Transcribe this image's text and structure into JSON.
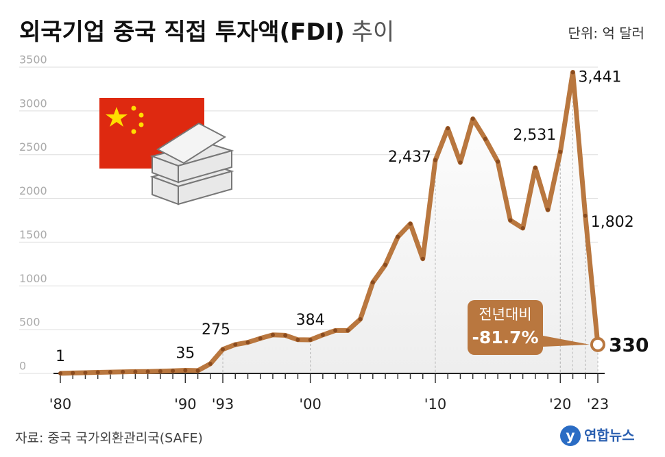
{
  "chart_data": {
    "type": "line",
    "title": "외국기업 중국 직접 투자액(FDI)",
    "title_suffix": "추이",
    "unit": "단위: 억 달러",
    "source": "자료: 중국 국가외환관리국(SAFE)",
    "logo": "연합뉴스",
    "annotation": [
      "전년대비",
      "-81.7%"
    ],
    "color": "#b9773f",
    "marker_color": "#8a4b1e",
    "x": [
      1980,
      1981,
      1982,
      1983,
      1984,
      1985,
      1986,
      1987,
      1988,
      1989,
      1990,
      1991,
      1992,
      1993,
      1994,
      1995,
      1996,
      1997,
      1998,
      1999,
      2000,
      2001,
      2002,
      2003,
      2004,
      2005,
      2006,
      2007,
      2008,
      2009,
      2010,
      2011,
      2012,
      2013,
      2014,
      2015,
      2016,
      2017,
      2018,
      2019,
      2020,
      2021,
      2022,
      2023
    ],
    "values": [
      1,
      5,
      8,
      12,
      15,
      18,
      20,
      22,
      25,
      30,
      35,
      32,
      110,
      275,
      330,
      355,
      400,
      440,
      435,
      385,
      384,
      440,
      490,
      490,
      620,
      1040,
      1240,
      1560,
      1710,
      1310,
      2437,
      2800,
      2410,
      2910,
      2680,
      2420,
      1750,
      1660,
      2350,
      1870,
      2531,
      3441,
      1802,
      330
    ],
    "value_labels": [
      "1",
      null,
      null,
      null,
      null,
      null,
      null,
      null,
      null,
      null,
      "35",
      null,
      null,
      "275",
      null,
      null,
      null,
      null,
      null,
      null,
      "384",
      null,
      null,
      null,
      null,
      null,
      null,
      null,
      null,
      null,
      "2,437",
      null,
      null,
      null,
      null,
      null,
      null,
      null,
      null,
      null,
      "2,531",
      "3,441",
      "1,802",
      "330"
    ],
    "xlim": [
      1980,
      2023
    ],
    "xticks": [
      {
        "value": 1980,
        "label": "'80"
      },
      {
        "value": 1990,
        "label": "'90"
      },
      {
        "value": 1993,
        "label": "'93"
      },
      {
        "value": 2000,
        "label": "'00"
      },
      {
        "value": 2010,
        "label": "'10"
      },
      {
        "value": 2020,
        "label": "'20"
      },
      {
        "value": 2023,
        "label": "'23"
      }
    ],
    "ylim": [
      0,
      3500
    ],
    "yticks": [
      0,
      500,
      1000,
      1500,
      2000,
      2500,
      3000,
      3500
    ]
  }
}
